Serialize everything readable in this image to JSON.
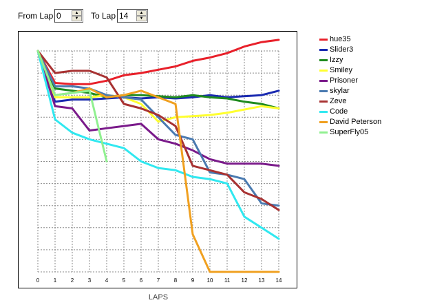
{
  "controls": {
    "from_lap_label": "From Lap",
    "from_lap_value": "0",
    "to_lap_label": "To Lap",
    "to_lap_value": "14",
    "up_glyph": "▲",
    "down_glyph": "▼"
  },
  "chart_data": {
    "type": "line",
    "xlabel": "LAPS",
    "ylabel": "",
    "title": "",
    "xlim": [
      0,
      14
    ],
    "ylim": [
      0,
      10
    ],
    "x_ticks": [
      "0",
      "1",
      "2",
      "3",
      "4",
      "5",
      "6",
      "7",
      "8",
      "9",
      "10",
      "11",
      "12",
      "13",
      "14"
    ],
    "grid": true,
    "legend_position": "right",
    "series": [
      {
        "name": "hue35",
        "color": "#e8202a",
        "x": [
          0,
          1,
          2,
          3,
          4,
          5,
          6,
          7,
          8,
          9,
          10,
          11,
          12,
          13,
          14
        ],
        "y": [
          10,
          8.55,
          8.5,
          8.5,
          8.65,
          8.9,
          9.0,
          9.15,
          9.3,
          9.55,
          9.7,
          9.9,
          10.2,
          10.4,
          10.5
        ]
      },
      {
        "name": "Slider3",
        "color": "#1a2ab0",
        "x": [
          0,
          1,
          2,
          3,
          4,
          5,
          6,
          7,
          8,
          9,
          10,
          11,
          12,
          13,
          14
        ],
        "y": [
          10,
          7.7,
          7.8,
          7.8,
          7.85,
          7.9,
          7.85,
          7.9,
          7.85,
          7.9,
          8.0,
          7.9,
          7.95,
          8.0,
          8.2
        ]
      },
      {
        "name": "Izzy",
        "color": "#1e8a1e",
        "x": [
          0,
          1,
          2,
          3,
          4,
          5,
          6,
          7,
          8,
          9,
          10,
          11,
          12,
          13,
          14
        ],
        "y": [
          10,
          8.3,
          8.2,
          8.1,
          7.9,
          8.0,
          8.0,
          7.95,
          7.9,
          8.0,
          7.9,
          7.85,
          7.7,
          7.6,
          7.4
        ]
      },
      {
        "name": "Smiley",
        "color": "#ffff30",
        "x": [
          0,
          1,
          2,
          3,
          4,
          5,
          6,
          7,
          8,
          9,
          10,
          11,
          12,
          13,
          14
        ],
        "y": [
          10,
          7.9,
          7.9,
          7.9,
          8.0,
          7.9,
          7.6,
          6.8,
          7.0,
          7.05,
          7.1,
          7.2,
          7.35,
          7.5,
          7.4
        ]
      },
      {
        "name": "Prisoner",
        "color": "#7a1a8a",
        "x": [
          0,
          1,
          2,
          3,
          4,
          5,
          6,
          7,
          8,
          9,
          10,
          11,
          12,
          13,
          14
        ],
        "y": [
          10,
          7.5,
          7.4,
          6.4,
          6.5,
          6.6,
          6.7,
          6.0,
          5.8,
          5.5,
          5.1,
          4.9,
          4.9,
          4.9,
          4.8
        ]
      },
      {
        "name": "skylar",
        "color": "#4a7ab0",
        "x": [
          0,
          1,
          2,
          3,
          4,
          5,
          6,
          7,
          8,
          9,
          10,
          11,
          12,
          13,
          14
        ],
        "y": [
          10,
          8.4,
          8.4,
          8.3,
          8.0,
          7.9,
          7.8,
          7.0,
          6.2,
          6.0,
          4.5,
          4.4,
          4.2,
          3.1,
          3.0
        ]
      },
      {
        "name": "Zeve",
        "color": "#a83232",
        "x": [
          0,
          1,
          2,
          3,
          4,
          5,
          6,
          7,
          8,
          9,
          10,
          11,
          12,
          13,
          14
        ],
        "y": [
          10,
          9.0,
          9.1,
          9.1,
          8.8,
          7.6,
          7.4,
          7.1,
          6.6,
          4.8,
          4.6,
          4.4,
          3.6,
          3.3,
          2.8
        ]
      },
      {
        "name": "Code",
        "color": "#30e8f0",
        "x": [
          0,
          1,
          2,
          3,
          4,
          5,
          6,
          7,
          8,
          9,
          10,
          11,
          12,
          13,
          14
        ],
        "y": [
          10,
          6.9,
          6.3,
          6.0,
          5.8,
          5.6,
          5.0,
          4.7,
          4.6,
          4.3,
          4.2,
          4.0,
          2.5,
          2.0,
          1.5
        ]
      },
      {
        "name": "David Peterson",
        "color": "#f0a020",
        "x": [
          0,
          1,
          2,
          3,
          4,
          5,
          6,
          7,
          8,
          9,
          10,
          11,
          12,
          13,
          14
        ],
        "y": [
          10,
          8.0,
          8.1,
          8.3,
          7.9,
          8.0,
          8.2,
          7.9,
          7.6,
          1.7,
          0.0,
          0.0,
          0.0,
          0.0,
          0.0
        ]
      },
      {
        "name": "SuperFly05",
        "color": "#90f090",
        "x": [
          0,
          1,
          2,
          3,
          4
        ],
        "y": [
          10,
          8.0,
          8.1,
          8.2,
          5.0
        ]
      }
    ]
  }
}
